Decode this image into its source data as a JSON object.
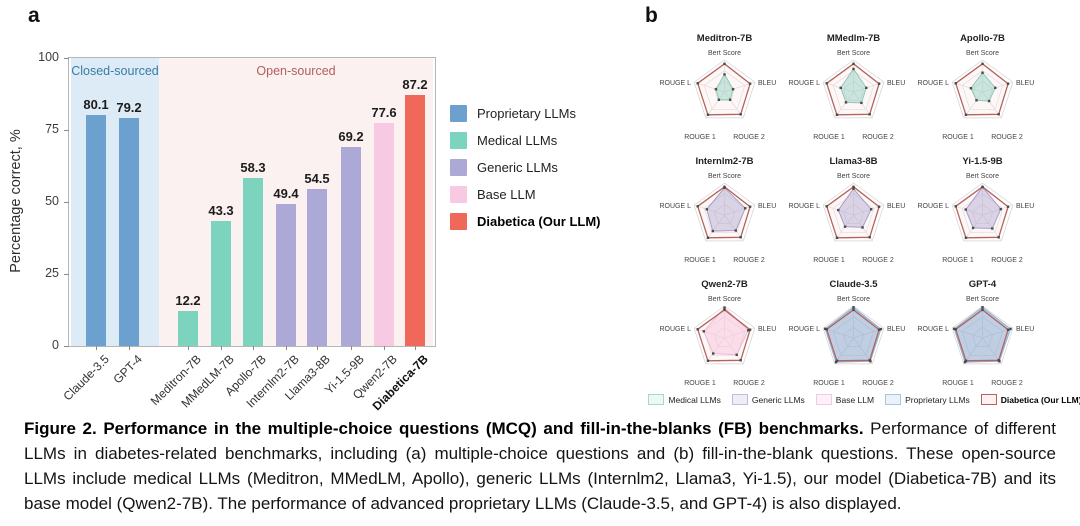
{
  "panel_a": {
    "label": "a"
  },
  "panel_b": {
    "label": "b"
  },
  "colors": {
    "proprietary": "#6ca0ce",
    "medical": "#7dd4be",
    "generic": "#aca9d6",
    "base": "#f7c9e3",
    "diabetica": "#f0685a",
    "diabetica_line": "#b4645c",
    "closed_region_bg": "#dcebf5",
    "open_region_bg": "#fbf1f0",
    "closed_region_text": "#3a7ca8",
    "open_region_text": "#b2605a"
  },
  "chart_data": [
    {
      "type": "bar",
      "ylabel": "Percentage correct, %",
      "ylim": [
        0,
        100
      ],
      "yticks": [
        0,
        25,
        50,
        75,
        100
      ],
      "categories": [
        "Claude-3.5",
        "GPT-4",
        "Meditron-7B",
        "MMedLM-7B",
        "Apollo-7B",
        "Internlm2-7B",
        "Llama3-8B",
        "Yi-1.5-9B",
        "Qwen2-7B",
        "Diabetica-7B"
      ],
      "values": [
        80.1,
        79.2,
        12.2,
        43.3,
        58.3,
        49.4,
        54.5,
        69.2,
        77.6,
        87.2
      ],
      "series_group": [
        "proprietary",
        "proprietary",
        "medical",
        "medical",
        "medical",
        "generic",
        "generic",
        "generic",
        "base",
        "diabetica"
      ],
      "bold_categories": [
        "Diabetica-7B"
      ],
      "regions": [
        {
          "label": "Closed-sourced",
          "bars": [
            0,
            1
          ]
        },
        {
          "label": "Open-sourced",
          "bars": [
            2,
            9
          ]
        }
      ],
      "legend": [
        {
          "label": "Proprietary LLMs",
          "group": "proprietary",
          "bold": false
        },
        {
          "label": "Medical LLMs",
          "group": "medical",
          "bold": false
        },
        {
          "label": "Generic LLMs",
          "group": "generic",
          "bold": false
        },
        {
          "label": "Base LLM",
          "group": "base",
          "bold": false
        },
        {
          "label": "Diabetica (Our LLM)",
          "group": "diabetica",
          "bold": true
        }
      ]
    },
    {
      "type": "radar",
      "axes": [
        "Bert Score",
        "BLEU",
        "ROUGE 2",
        "ROUGE 1",
        "ROUGE L"
      ],
      "scale": [
        0,
        1
      ],
      "grid_levels": 3,
      "legend_position": "bottom",
      "reference_series": {
        "name": "Diabetica (Our LLM)",
        "group": "diabetica",
        "values": [
          0.88,
          0.84,
          0.86,
          0.88,
          0.88
        ]
      },
      "charts": [
        {
          "title": "Meditron-7B",
          "group": "medical",
          "values": [
            0.55,
            0.28,
            0.3,
            0.3,
            0.28
          ]
        },
        {
          "title": "MMedlm-7B",
          "group": "medical",
          "values": [
            0.72,
            0.42,
            0.42,
            0.4,
            0.42
          ]
        },
        {
          "title": "Apollo-7B",
          "group": "medical",
          "values": [
            0.6,
            0.42,
            0.35,
            0.32,
            0.38
          ]
        },
        {
          "title": "Internlm2-7B",
          "group": "generic",
          "values": [
            0.85,
            0.68,
            0.6,
            0.62,
            0.58
          ]
        },
        {
          "title": "Llama3-8B",
          "group": "generic",
          "values": [
            0.82,
            0.58,
            0.48,
            0.45,
            0.5
          ]
        },
        {
          "title": "Yi-1.5-9B",
          "group": "generic",
          "values": [
            0.87,
            0.6,
            0.52,
            0.5,
            0.55
          ]
        },
        {
          "title": "Qwen2-7B",
          "group": "base",
          "values": [
            0.95,
            0.78,
            0.65,
            0.6,
            0.68
          ]
        },
        {
          "title": "Claude-3.5",
          "group": "proprietary",
          "values": [
            0.96,
            0.9,
            0.9,
            0.93,
            0.93
          ]
        },
        {
          "title": "GPT-4",
          "group": "proprietary",
          "values": [
            0.96,
            0.92,
            0.9,
            0.93,
            0.93
          ]
        }
      ],
      "legend": [
        {
          "label": "Medical LLMs",
          "group": "medical",
          "bold": false
        },
        {
          "label": "Generic LLMs",
          "group": "generic",
          "bold": false
        },
        {
          "label": "Base LLM",
          "group": "base",
          "bold": false
        },
        {
          "label": "Proprietary LLMs",
          "group": "proprietary",
          "bold": false
        },
        {
          "label": "Diabetica (Our LLM)",
          "group": "diabetica",
          "bold": true
        }
      ]
    }
  ],
  "caption": {
    "bold": "Figure 2. Performance in the multiple-choice questions (MCQ) and fill-in-the-blanks (FB) benchmarks.",
    "rest": " Performance of different LLMs in diabetes-related benchmarks, including (a) multiple-choice questions and (b) fill-in-the-blank questions. These open-source LLMs include medical LLMs (Meditron, MMedLM, Apollo), generic LLMs (Internlm2, Llama3, Yi-1.5), our model (Diabetica-7B) and its base model (Qwen2-7B). The performance of advanced proprietary LLMs (Claude-3.5, and GPT-4) is also displayed."
  }
}
